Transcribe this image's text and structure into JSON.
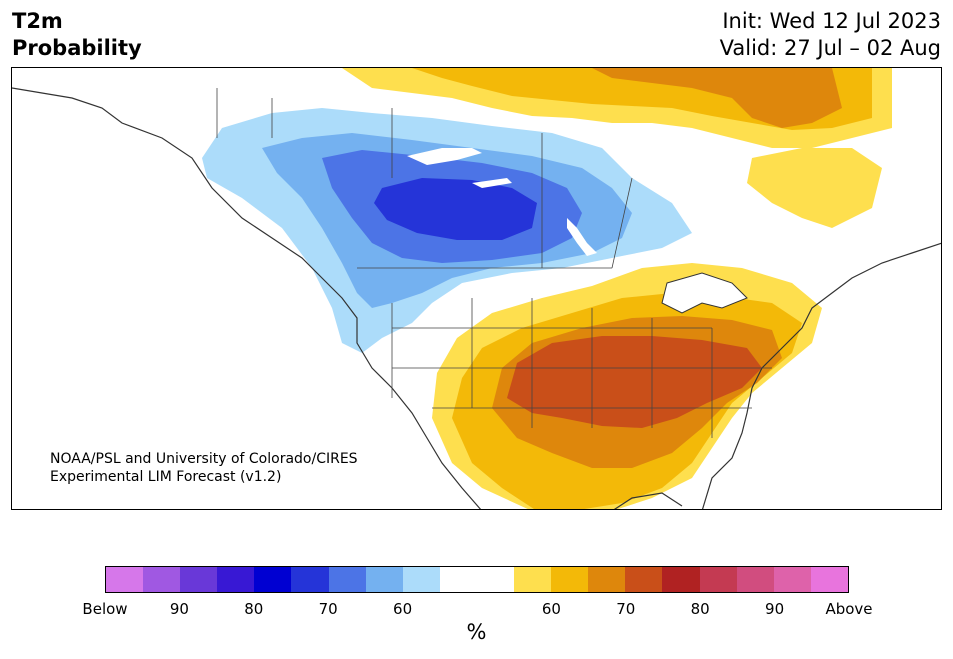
{
  "header": {
    "title_line1": "T2m",
    "title_line2": "Probability",
    "init": "Init: Wed 12 Jul 2023",
    "valid": "Valid: 27 Jul – 02 Aug"
  },
  "map": {
    "credit_line1": "NOAA/PSL and University of Colorado/CIRES",
    "credit_line2": "Experimental LIM Forecast (v1.2)",
    "colors": {
      "below_60": "#acdcfa",
      "below_70": "#74b1f0",
      "below_75": "#4c74e6",
      "below_80": "#2534d8",
      "above_60": "#fedf4e",
      "above_65": "#f3b908",
      "above_70": "#de870c",
      "above_75": "#c94f19",
      "coastline": "#333333"
    }
  },
  "colorbar": {
    "colors": [
      "#d677ea",
      "#a058e2",
      "#6938d8",
      "#3818d4",
      "#0000d2",
      "#2534d8",
      "#4c74e6",
      "#74b1f0",
      "#acdcfa",
      "#ffffff",
      "#ffffff",
      "#fedf4e",
      "#f3b908",
      "#de870c",
      "#c94f19",
      "#b02222",
      "#c43a52",
      "#d14d7f",
      "#de62aa",
      "#e874dd"
    ],
    "tick_labels": [
      "Below",
      "90",
      "80",
      "70",
      "60",
      "60",
      "70",
      "80",
      "90",
      "Above"
    ],
    "unit": "%"
  }
}
